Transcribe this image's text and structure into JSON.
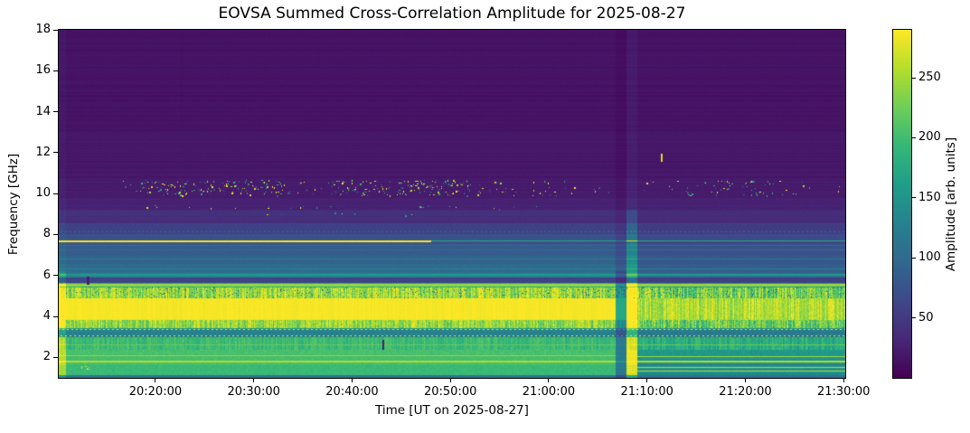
{
  "title": "EOVSA Summed Cross-Correlation Amplitude for 2025-08-27",
  "axes": {
    "xlabel": "Time [UT on 2025-08-27]",
    "ylabel": "Frequency [GHz]",
    "x_tick_labels": [
      "20:20:00",
      "20:30:00",
      "20:40:00",
      "20:50:00",
      "21:00:00",
      "21:10:00",
      "21:20:00",
      "21:30:00"
    ],
    "y_tick_labels": [
      "18",
      "16",
      "14",
      "12",
      "10",
      "8",
      "6",
      "4",
      "2"
    ]
  },
  "colorbar": {
    "label": "Amplitude [arb. units]",
    "tick_labels": [
      "250",
      "200",
      "150",
      "100",
      "50"
    ],
    "vmin": 0,
    "vmax": 290,
    "colormap": "viridis",
    "color_min": "#440154",
    "color_max": "#fde725"
  },
  "chart_data": {
    "type": "heatmap",
    "title": "EOVSA Summed Cross-Correlation Amplitude for 2025-08-27",
    "xlabel": "Time [UT on 2025-08-27]",
    "ylabel": "Frequency [GHz]",
    "time_start": "20:10:10",
    "time_end": "21:30:10",
    "freq_range_ghz": [
      1.0,
      18.0
    ],
    "amplitude_range": [
      0,
      290
    ],
    "colormap": "viridis",
    "regime_change_time": "21:09:00",
    "bands": [
      {
        "f": [
          18.0,
          13.0
        ],
        "amp": [
          15,
          15
        ],
        "noise": [
          2,
          2
        ]
      },
      {
        "f": [
          13.0,
          10.7
        ],
        "amp": [
          18,
          18
        ],
        "noise": [
          2,
          2
        ]
      },
      {
        "f": [
          10.7,
          9.75
        ],
        "amp": [
          22,
          22
        ],
        "noise": [
          3,
          3
        ]
      },
      {
        "f": [
          9.75,
          9.2
        ],
        "amp": [
          27,
          27
        ],
        "noise": [
          3,
          3
        ]
      },
      {
        "f": [
          9.2,
          8.55
        ],
        "amp": [
          40,
          37
        ],
        "noise": [
          4,
          4
        ]
      },
      {
        "f": [
          8.55,
          8.0
        ],
        "amp": [
          58,
          53
        ],
        "noise": [
          4,
          4
        ]
      },
      {
        "f": [
          8.0,
          7.55
        ],
        "amp": [
          74,
          66
        ],
        "noise": [
          5,
          4
        ]
      },
      {
        "f": [
          7.55,
          6.95
        ],
        "amp": [
          84,
          73
        ],
        "noise": [
          6,
          4
        ]
      },
      {
        "f": [
          6.95,
          6.55
        ],
        "amp": [
          92,
          79
        ],
        "noise": [
          7,
          5
        ]
      },
      {
        "f": [
          6.55,
          6.12
        ],
        "amp": [
          102,
          87
        ],
        "noise": [
          8,
          6
        ]
      },
      {
        "f": [
          6.12,
          5.92
        ],
        "amp": [
          126,
          103
        ],
        "noise": [
          10,
          8
        ]
      },
      {
        "f": [
          5.92,
          5.64
        ],
        "amp": [
          60,
          56
        ],
        "noise": [
          5,
          5
        ]
      },
      {
        "f": [
          5.64,
          5.42
        ],
        "amp": [
          175,
          150
        ],
        "noise": [
          30,
          30
        ]
      },
      {
        "f": [
          5.42,
          4.87
        ],
        "amp": [
          245,
          226
        ],
        "noise": [
          55,
          65
        ],
        "striate": true,
        "darkdots": true
      },
      {
        "f": [
          4.87,
          3.82
        ],
        "amp": [
          287,
          256
        ],
        "noise": [
          6,
          40
        ],
        "striate": true
      },
      {
        "f": [
          3.82,
          3.42
        ],
        "amp": [
          242,
          220
        ],
        "noise": [
          50,
          62
        ],
        "striate": true
      },
      {
        "f": [
          3.42,
          3.32
        ],
        "amp": [
          150,
          145
        ],
        "noise": [
          15,
          18
        ]
      },
      {
        "f": [
          3.32,
          2.97
        ],
        "amp": [
          128,
          120
        ],
        "noise": [
          12,
          16
        ]
      },
      {
        "f": [
          2.97,
          2.38
        ],
        "amp": [
          196,
          180
        ],
        "noise": [
          22,
          32
        ],
        "striate": true
      },
      {
        "f": [
          2.38,
          2.02
        ],
        "amp": [
          205,
          155
        ],
        "noise": [
          18,
          26
        ]
      },
      {
        "f": [
          2.02,
          1.62
        ],
        "amp": [
          203,
          148
        ],
        "noise": [
          15,
          22
        ]
      },
      {
        "f": [
          1.62,
          1.12
        ],
        "amp": [
          196,
          146
        ],
        "noise": [
          15,
          22
        ]
      },
      {
        "f": [
          1.12,
          1.0
        ],
        "amp": [
          115,
          108
        ],
        "noise": [
          8,
          8
        ]
      }
    ],
    "lines": [
      {
        "f": 8.15,
        "amp": 100,
        "style": "dotted"
      },
      {
        "f": 7.68,
        "amp": 288,
        "h": 2,
        "until": "20:48:00"
      },
      {
        "f": 7.68,
        "amp": 178,
        "from": "20:48:00"
      },
      {
        "f": 7.45,
        "amp": 102
      },
      {
        "f": 7.25,
        "amp": 99
      },
      {
        "f": 6.8,
        "amp": 116
      },
      {
        "f": 6.3,
        "amp": 124
      },
      {
        "f": 6.02,
        "amp": 156,
        "h": 2
      },
      {
        "f": 5.55,
        "amp": 248,
        "h": 2
      },
      {
        "f": 5.46,
        "amp": 235
      },
      {
        "f": 3.37,
        "amp": 280,
        "style": "dotted"
      },
      {
        "f": 3.05,
        "amp": 276,
        "style": "dotted"
      },
      {
        "f": 2.6,
        "amp": 220
      },
      {
        "f": 2.1,
        "amp": 238,
        "until": "21:07:00"
      },
      {
        "f": 1.78,
        "amp": 256,
        "h": 2
      },
      {
        "f": 2.05,
        "amp": 250,
        "from": "21:09:00"
      },
      {
        "f": 1.62,
        "amp": 120,
        "from": "21:09:00"
      },
      {
        "f": 1.5,
        "amp": 256,
        "from": "21:09:00"
      },
      {
        "f": 1.35,
        "amp": 253,
        "from": "21:09:00"
      },
      {
        "f": 1.22,
        "amp": 118,
        "from": "21:09:00"
      }
    ],
    "events": [
      {
        "name": "startup-bright-column-low",
        "t": [
          "20:10:10",
          "20:10:52"
        ],
        "f": [
          1.0,
          6.2
        ],
        "mul": 1.18,
        "add": 18
      },
      {
        "name": "startup-bright-column-high",
        "t": [
          "20:10:10",
          "20:10:52"
        ],
        "f": [
          6.2,
          18.0
        ],
        "mul": 1.06,
        "add": 3
      },
      {
        "name": "faint-dark-line",
        "t": [
          "20:22:30",
          "20:22:42"
        ],
        "f": [
          13.2,
          18.0
        ],
        "mul": 0.88,
        "add": 0
      },
      {
        "name": "dark-dash-1",
        "t": [
          "20:13:00",
          "20:13:14"
        ],
        "f": [
          5.55,
          5.95
        ],
        "mul": 0,
        "add": 26
      },
      {
        "name": "dark-dash-2",
        "t": [
          "20:43:00",
          "20:43:14"
        ],
        "f": [
          2.35,
          2.85
        ],
        "mul": 0,
        "add": 26
      },
      {
        "name": "bright-dash",
        "t": [
          "21:11:20",
          "21:11:34"
        ],
        "f": [
          11.55,
          11.95
        ],
        "mul": 0,
        "add": 272
      },
      {
        "name": "dark-lane-high",
        "t": [
          "21:06:48",
          "21:07:52"
        ],
        "f": [
          6.2,
          18.0
        ],
        "mul": 0.82,
        "add": -2
      },
      {
        "name": "dark-lane-low",
        "t": [
          "21:06:48",
          "21:07:52"
        ],
        "f": [
          1.0,
          6.2
        ],
        "mul": 0.6,
        "add": 0
      },
      {
        "name": "bright-lane-high",
        "t": [
          "21:07:52",
          "21:09:00"
        ],
        "f": [
          9.2,
          18.0
        ],
        "mul": 1.12,
        "add": 4
      },
      {
        "name": "bright-lane-mid",
        "t": [
          "21:07:52",
          "21:09:00"
        ],
        "f": [
          6.2,
          9.2
        ],
        "mul": 1.45,
        "add": 10
      },
      {
        "name": "bright-lane-low",
        "t": [
          "21:07:52",
          "21:09:00"
        ],
        "f": [
          1.0,
          6.2
        ],
        "mul": 1.25,
        "add": 30
      }
    ],
    "rfi": {
      "f": [
        9.9,
        10.65
      ],
      "clusters": [
        {
          "t": [
            "20:16:00",
            "20:18:30"
          ],
          "density": 0.1
        },
        {
          "t": [
            "20:18:30",
            "20:26:00"
          ],
          "density": 0.45
        },
        {
          "t": [
            "20:26:30",
            "20:33:00"
          ],
          "density": 0.5
        },
        {
          "t": [
            "20:33:00",
            "20:37:00"
          ],
          "density": 0.22
        },
        {
          "t": [
            "20:37:30",
            "20:44:00"
          ],
          "density": 0.45
        },
        {
          "t": [
            "20:44:30",
            "20:52:00"
          ],
          "density": 0.55
        },
        {
          "t": [
            "20:52:00",
            "20:57:00"
          ],
          "density": 0.18
        },
        {
          "t": [
            "20:57:30",
            "21:03:00"
          ],
          "density": 0.12
        },
        {
          "t": [
            "21:04:00",
            "21:06:30"
          ],
          "density": 0.06
        },
        {
          "t": [
            "21:09:30",
            "21:16:00"
          ],
          "density": 0.12
        },
        {
          "t": [
            "21:16:30",
            "21:23:00"
          ],
          "density": 0.25
        },
        {
          "t": [
            "21:23:30",
            "21:27:00"
          ],
          "density": 0.08
        },
        {
          "t": [
            "21:28:30",
            "21:30:00"
          ],
          "density": 0.1
        }
      ],
      "extra_dots": [
        {
          "t": [
            "20:12:30",
            "20:13:20"
          ],
          "f": [
            1.42,
            1.55
          ],
          "density": 0.35,
          "palette": "yellow"
        },
        {
          "t": [
            "20:18:00",
            "21:00:00"
          ],
          "f": [
            9.25,
            9.4
          ],
          "density": 0.02
        },
        {
          "t": [
            "20:30:00",
            "20:50:00"
          ],
          "f": [
            8.9,
            9.1
          ],
          "density": 0.008
        }
      ]
    }
  }
}
